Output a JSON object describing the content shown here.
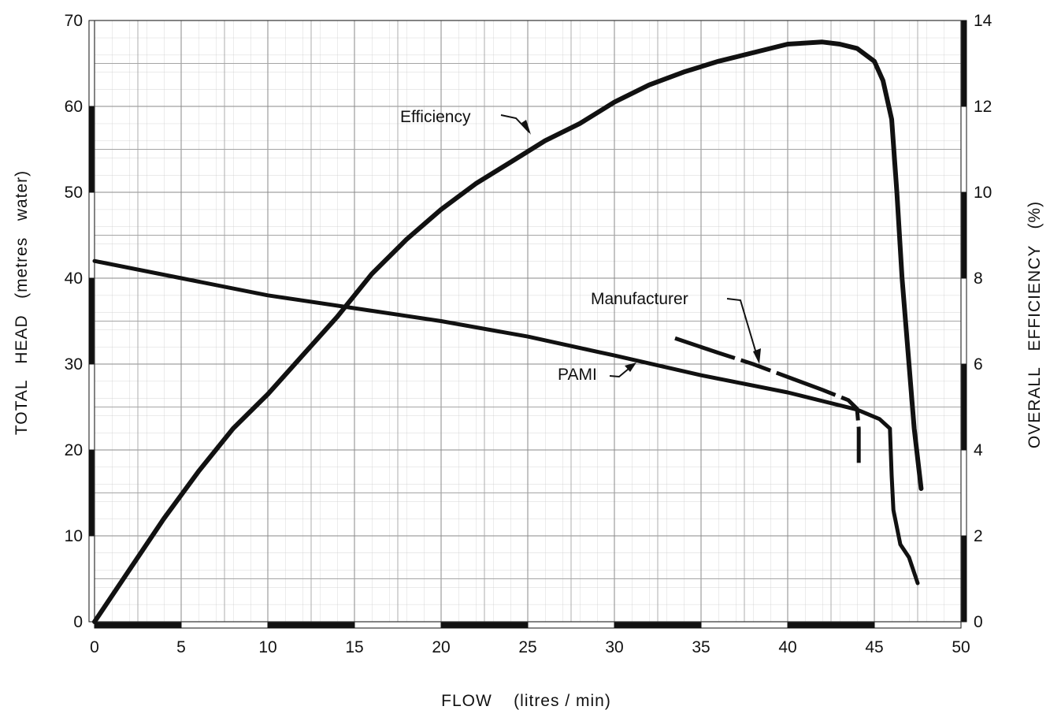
{
  "chart_data": {
    "type": "line",
    "title": "",
    "xlabel": "FLOW    (litres / min)",
    "ylabel_left": "TOTAL   HEAD   (metres   water)",
    "ylabel_right": "OVERALL   EFFICIENCY   (%)",
    "xlim": [
      0,
      50
    ],
    "ylim_left": [
      0,
      70
    ],
    "ylim_right": [
      0,
      14
    ],
    "x_ticks": [
      "0",
      "5",
      "10",
      "15",
      "20",
      "25",
      "30",
      "35",
      "40",
      "45",
      "50"
    ],
    "y_left_ticks": [
      "0",
      "10",
      "20",
      "30",
      "40",
      "50",
      "60",
      "70"
    ],
    "y_right_ticks": [
      "0",
      "2",
      "4",
      "6",
      "8",
      "10",
      "12",
      "14"
    ],
    "grid": true,
    "series": [
      {
        "name": "Efficiency",
        "axis": "right",
        "x": [
          0,
          2,
          4,
          6,
          8,
          10,
          12,
          14,
          16,
          18,
          20,
          22,
          24,
          26,
          28,
          30,
          32,
          34,
          36,
          38,
          40,
          42,
          43,
          44,
          45,
          45.5,
          46,
          46.3,
          46.6,
          47,
          47.3,
          47.7
        ],
        "y": [
          0,
          1.2,
          2.4,
          3.5,
          4.5,
          5.3,
          6.2,
          7.1,
          8.1,
          8.9,
          9.6,
          10.2,
          10.7,
          11.2,
          11.6,
          12.1,
          12.5,
          12.8,
          13.05,
          13.25,
          13.45,
          13.5,
          13.45,
          13.35,
          13.05,
          12.6,
          11.7,
          10.0,
          8.0,
          6.0,
          4.5,
          3.1
        ]
      },
      {
        "name": "PAMI",
        "axis": "left",
        "x": [
          0,
          5,
          10,
          15,
          20,
          25,
          30,
          35,
          40,
          44,
          45.3,
          45.9,
          46.0,
          46.1,
          46.5,
          47.0,
          47.5
        ],
        "y": [
          42,
          40,
          38,
          36.5,
          35,
          33.2,
          31,
          28.7,
          26.7,
          24.7,
          23.6,
          22.5,
          17,
          13,
          9,
          7.5,
          4.5
        ]
      },
      {
        "name": "Manufacturer",
        "axis": "left",
        "x": [
          33.5,
          36,
          38,
          40,
          42,
          43.5,
          44,
          44.1,
          44.1
        ],
        "y": [
          33,
          31.3,
          30,
          28.5,
          27,
          25.8,
          24.8,
          22.5,
          18.5
        ]
      }
    ]
  }
}
